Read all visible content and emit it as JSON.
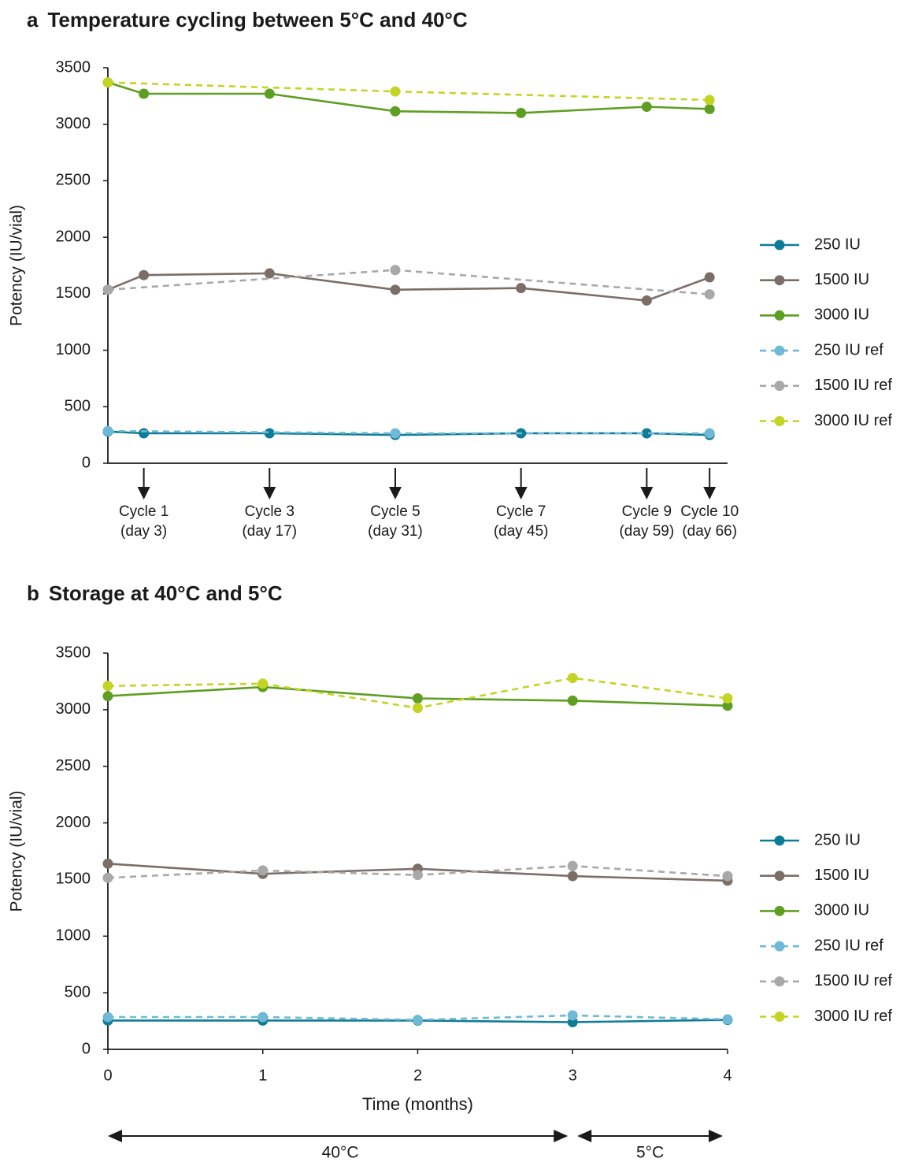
{
  "panel_a": {
    "label": "a",
    "title": "Temperature cycling between 5°C and 40°C"
  },
  "panel_b": {
    "label": "b",
    "title": "Storage at 40°C and 5°C"
  },
  "colors": {
    "250 IU": "#0e7c96",
    "1500 IU": "#7b6e69",
    "3000 IU": "#5e9e22",
    "250 IU ref": "#6fb9d6",
    "1500 IU ref": "#a8a8a8",
    "3000 IU ref": "#c4d424",
    "axis": "#1a1a1a"
  },
  "chart_data": [
    {
      "type": "line",
      "title": "Temperature cycling between 5°C and 40°C",
      "ylabel": "Potency (IU/vial)",
      "ylim": [
        0,
        3500
      ],
      "yticks": [
        0,
        500,
        1000,
        1500,
        2000,
        2500,
        3000,
        3500
      ],
      "xlim": [
        -1,
        68
      ],
      "x_annotations": [
        {
          "x": 3,
          "line1": "Cycle 1",
          "line2": "(day 3)"
        },
        {
          "x": 17,
          "line1": "Cycle 3",
          "line2": "(day 17)"
        },
        {
          "x": 31,
          "line1": "Cycle 5",
          "line2": "(day 31)"
        },
        {
          "x": 45,
          "line1": "Cycle 7",
          "line2": "(day 45)"
        },
        {
          "x": 59,
          "line1": "Cycle 9",
          "line2": "(day 59)"
        },
        {
          "x": 66,
          "line1": "Cycle 10",
          "line2": "(day 66)"
        }
      ],
      "legend": "right",
      "series": [
        {
          "name": "250 IU",
          "style": "solid",
          "x": [
            -1,
            3,
            17,
            31,
            45,
            59,
            66
          ],
          "y": [
            280,
            265,
            265,
            250,
            265,
            265,
            250
          ]
        },
        {
          "name": "1500 IU",
          "style": "solid",
          "x": [
            -1,
            3,
            17,
            31,
            45,
            59,
            66
          ],
          "y": [
            1535,
            1665,
            1680,
            1535,
            1550,
            1440,
            1645
          ]
        },
        {
          "name": "3000 IU",
          "style": "solid",
          "x": [
            -1,
            3,
            17,
            31,
            45,
            59,
            66
          ],
          "y": [
            3370,
            3270,
            3270,
            3115,
            3100,
            3155,
            3135
          ]
        },
        {
          "name": "250 IU ref",
          "style": "dashed",
          "x": [
            -1,
            31,
            66
          ],
          "y": [
            285,
            265,
            265
          ]
        },
        {
          "name": "1500 IU ref",
          "style": "dashed",
          "x": [
            -1,
            31,
            66
          ],
          "y": [
            1535,
            1710,
            1495
          ]
        },
        {
          "name": "3000 IU ref",
          "style": "dashed",
          "x": [
            -1,
            31,
            66
          ],
          "y": [
            3370,
            3290,
            3215
          ]
        }
      ]
    },
    {
      "type": "line",
      "title": "Storage at 40°C and 5°C",
      "xlabel": "Time (months)",
      "ylabel": "Potency (IU/vial)",
      "ylim": [
        0,
        3500
      ],
      "yticks": [
        0,
        500,
        1000,
        1500,
        2000,
        2500,
        3000,
        3500
      ],
      "xlim": [
        0,
        4
      ],
      "xticks": [
        0,
        1,
        2,
        3,
        4
      ],
      "phases": [
        {
          "label": "40°C",
          "from": 0,
          "to": 3
        },
        {
          "label": "5°C",
          "from": 3,
          "to": 4
        }
      ],
      "legend": "right",
      "series": [
        {
          "name": "250 IU",
          "style": "solid",
          "x": [
            0,
            1,
            2,
            3,
            4
          ],
          "y": [
            255,
            255,
            255,
            240,
            260
          ]
        },
        {
          "name": "1500 IU",
          "style": "solid",
          "x": [
            0,
            1,
            2,
            3,
            4
          ],
          "y": [
            1640,
            1550,
            1595,
            1530,
            1490
          ]
        },
        {
          "name": "3000 IU",
          "style": "solid",
          "x": [
            0,
            1,
            2,
            3,
            4
          ],
          "y": [
            3120,
            3200,
            3100,
            3080,
            3035
          ]
        },
        {
          "name": "250 IU ref",
          "style": "dashed",
          "x": [
            0,
            1,
            2,
            3,
            4
          ],
          "y": [
            285,
            285,
            260,
            300,
            265
          ]
        },
        {
          "name": "1500 IU ref",
          "style": "dashed",
          "x": [
            0,
            1,
            2,
            3,
            4
          ],
          "y": [
            1515,
            1580,
            1540,
            1620,
            1530
          ]
        },
        {
          "name": "3000 IU ref",
          "style": "dashed",
          "x": [
            0,
            1,
            2,
            3,
            4
          ],
          "y": [
            3210,
            3230,
            3015,
            3280,
            3100
          ]
        }
      ]
    }
  ]
}
